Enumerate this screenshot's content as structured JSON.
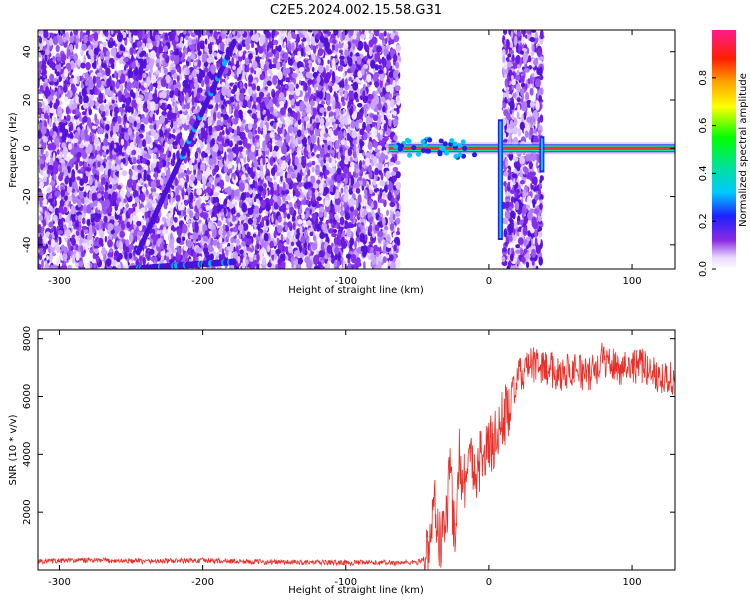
{
  "figure": {
    "title": "C2E5.2024.002.15.58.G31"
  },
  "chart_data": [
    {
      "type": "heatmap",
      "xlabel": "Height of straight line (km)",
      "ylabel": "Frequency (Hz)",
      "xlim": [
        -315,
        130
      ],
      "ylim": [
        -50,
        49
      ],
      "x_ticks": [
        -300,
        -200,
        -100,
        0,
        100
      ],
      "y_ticks": [
        -40,
        -20,
        0,
        20,
        40
      ],
      "colorbar": {
        "label": "Normalized spectral amplitude",
        "range": [
          0,
          1
        ],
        "ticks": [
          0.0,
          0.2,
          0.4,
          0.6,
          0.8
        ]
      },
      "features": [
        {
          "name": "noise",
          "x": [
            -315,
            -63
          ]
        },
        {
          "name": "noise",
          "x": [
            10,
            37
          ]
        },
        {
          "name": "streak",
          "x": [
            -245,
            -178
          ],
          "y": [
            -43,
            44
          ]
        },
        {
          "name": "streak",
          "x": [
            -250,
            -178
          ],
          "y": [
            -50,
            -47
          ]
        },
        {
          "name": "carrier",
          "x": [
            -70,
            130
          ],
          "y": 0
        },
        {
          "name": "carrier-spike",
          "x": 8,
          "y": [
            -38,
            12
          ]
        },
        {
          "name": "carrier-spike",
          "x": 37,
          "y": [
            -10,
            5
          ]
        }
      ]
    },
    {
      "type": "line",
      "xlabel": "Height of straight line (km)",
      "ylabel": "SNR (10 * v/v)",
      "xlim": [
        -315,
        130
      ],
      "ylim": [
        0,
        8300
      ],
      "x_ticks": [
        -300,
        -200,
        -100,
        0,
        100
      ],
      "y_ticks": [
        2000,
        4000,
        6000,
        8000
      ],
      "series_color": "#e8302a",
      "envelope": [
        {
          "x": -315,
          "y": 300
        },
        {
          "x": -280,
          "y": 340
        },
        {
          "x": -240,
          "y": 300
        },
        {
          "x": -200,
          "y": 330
        },
        {
          "x": -160,
          "y": 280
        },
        {
          "x": -120,
          "y": 260
        },
        {
          "x": -80,
          "y": 250
        },
        {
          "x": -50,
          "y": 260
        },
        {
          "x": -42,
          "y": 500
        },
        {
          "x": -38,
          "y": 2500
        },
        {
          "x": -34,
          "y": 800
        },
        {
          "x": -30,
          "y": 1800
        },
        {
          "x": -27,
          "y": 3500
        },
        {
          "x": -24,
          "y": 1200
        },
        {
          "x": -21,
          "y": 4000
        },
        {
          "x": -18,
          "y": 3000
        },
        {
          "x": -14,
          "y": 3800
        },
        {
          "x": -10,
          "y": 3500
        },
        {
          "x": -5,
          "y": 3900
        },
        {
          "x": 0,
          "y": 4200
        },
        {
          "x": 5,
          "y": 4600
        },
        {
          "x": 10,
          "y": 5200
        },
        {
          "x": 15,
          "y": 5800
        },
        {
          "x": 20,
          "y": 6600
        },
        {
          "x": 25,
          "y": 6900
        },
        {
          "x": 30,
          "y": 7100
        },
        {
          "x": 40,
          "y": 7000
        },
        {
          "x": 50,
          "y": 6800
        },
        {
          "x": 60,
          "y": 7000
        },
        {
          "x": 70,
          "y": 6700
        },
        {
          "x": 80,
          "y": 7300
        },
        {
          "x": 90,
          "y": 7000
        },
        {
          "x": 100,
          "y": 7100
        },
        {
          "x": 110,
          "y": 7000
        },
        {
          "x": 120,
          "y": 6700
        },
        {
          "x": 130,
          "y": 6600
        }
      ]
    }
  ]
}
